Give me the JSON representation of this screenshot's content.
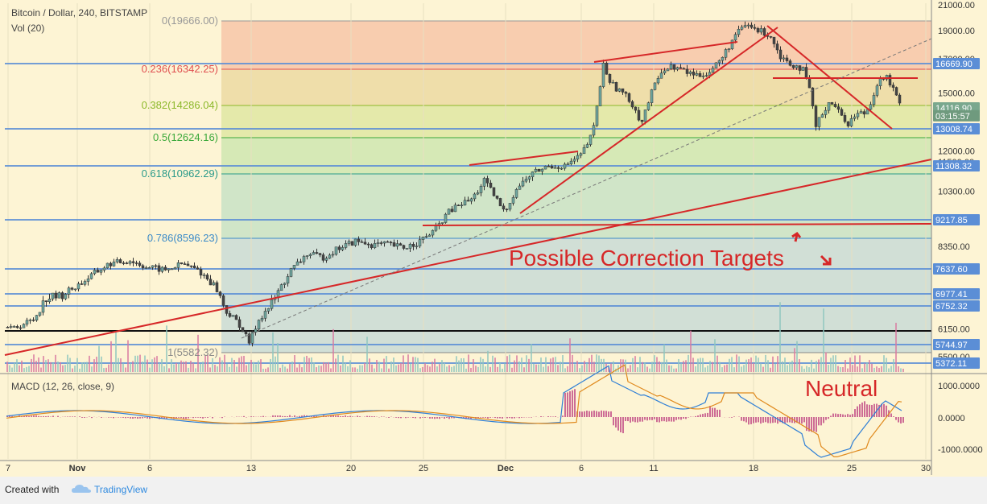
{
  "header": {
    "symbol": "Bitcoin / Dollar, 240, BITSTAMP",
    "volume": "Vol (20)",
    "macd": "MACD (12, 26, close, 9)"
  },
  "footer": {
    "created_with": "Created with",
    "brand": "TradingView"
  },
  "colors": {
    "background": "#fdf4d4",
    "up_candle": "#6fa8a0",
    "down_candle": "#444444",
    "red_line": "#d62728",
    "blue_line": "#5b8ed6",
    "price_badge": "#5b8ed6",
    "last_price_badge": "#7aa88e"
  },
  "chart_data": {
    "type": "candlestick",
    "ylim": [
      4800,
      21000
    ],
    "y_axis_labels": [
      "21000.00",
      "19000.00",
      "17000.00",
      "15000.00",
      "14000.00",
      "12000.00",
      "11500.00",
      "10300.00",
      "9217.85",
      "8350.00",
      "6150.00",
      "5500.00"
    ],
    "x_axis_labels": [
      "7",
      "Nov",
      "6",
      "13",
      "20",
      "25",
      "Dec",
      "6",
      "11",
      "18",
      "25",
      "30"
    ],
    "fib_levels": [
      {
        "ratio": "0",
        "price": 19666.0,
        "label": "0(19666.00)",
        "color": "#999999"
      },
      {
        "ratio": "0.236",
        "price": 16342.25,
        "label": "0.236(16342.25)",
        "color": "#e05050"
      },
      {
        "ratio": "0.382",
        "price": 14286.04,
        "label": "0.382(14286.04)",
        "color": "#8cb82a"
      },
      {
        "ratio": "0.5",
        "price": 12624.16,
        "label": "0.5(12624.16)",
        "color": "#3aa83a"
      },
      {
        "ratio": "0.618",
        "price": 10962.29,
        "label": "0.618(10962.29)",
        "color": "#2a9a8a"
      },
      {
        "ratio": "0.786",
        "price": 8596.23,
        "label": "0.786(8596.23)",
        "color": "#3a8ac8"
      },
      {
        "ratio": "1",
        "price": 5582.32,
        "label": "1(5582.32)",
        "color": "#888888"
      }
    ],
    "price_badges": [
      {
        "price": 16669.9,
        "label": "16669.90"
      },
      {
        "price": 14116.9,
        "label": "14116.90",
        "last": true
      },
      {
        "price": 13700,
        "label": "03:15:57",
        "timer": true
      },
      {
        "price": 13008.74,
        "label": "13008.74"
      },
      {
        "price": 11308.32,
        "label": "11308.32"
      },
      {
        "price": 9217.85,
        "label": "9217.85"
      },
      {
        "price": 7637.6,
        "label": "7637.60"
      },
      {
        "price": 6977.41,
        "label": "6977.41"
      },
      {
        "price": 6752.32,
        "label": "6752.32"
      },
      {
        "price": 5744.97,
        "label": "5744.97"
      },
      {
        "price": 5372.11,
        "label": "5372.11"
      }
    ],
    "horizontal_lines": [
      16669.9,
      13008.74,
      11308.32,
      9217.85,
      7637.6,
      6977.41,
      6752.32,
      5744.97,
      5372.11
    ],
    "support_level": 6050,
    "annotations": [
      {
        "text": "Possible Correction Targets",
        "color": "#d62728"
      },
      {
        "text": "Neutral",
        "color": "#d62728"
      }
    ],
    "macd_axis_labels": [
      "1000.0000",
      "0.0000",
      "-1000.0000"
    ],
    "close_path": [
      [
        0,
        6300
      ],
      [
        12,
        6150
      ],
      [
        24,
        6250
      ],
      [
        40,
        6400
      ],
      [
        55,
        6900
      ],
      [
        75,
        6950
      ],
      [
        95,
        7200
      ],
      [
        115,
        7500
      ],
      [
        135,
        7800
      ],
      [
        160,
        7900
      ],
      [
        180,
        7700
      ],
      [
        205,
        7600
      ],
      [
        225,
        7800
      ],
      [
        245,
        7600
      ],
      [
        265,
        7200
      ],
      [
        280,
        6600
      ],
      [
        295,
        6300
      ],
      [
        308,
        5800
      ],
      [
        320,
        6400
      ],
      [
        340,
        6900
      ],
      [
        360,
        7600
      ],
      [
        380,
        8100
      ],
      [
        400,
        8000
      ],
      [
        420,
        8300
      ],
      [
        440,
        8500
      ],
      [
        460,
        8400
      ],
      [
        480,
        8400
      ],
      [
        500,
        8300
      ],
      [
        520,
        8500
      ],
      [
        540,
        8900
      ],
      [
        555,
        9500
      ],
      [
        570,
        9800
      ],
      [
        585,
        10000
      ],
      [
        600,
        10700
      ],
      [
        615,
        10000
      ],
      [
        625,
        9500
      ],
      [
        640,
        10400
      ],
      [
        660,
        11000
      ],
      [
        680,
        11300
      ],
      [
        700,
        11300
      ],
      [
        720,
        11800
      ],
      [
        735,
        12800
      ],
      [
        748,
        16600
      ],
      [
        758,
        15500
      ],
      [
        772,
        15000
      ],
      [
        785,
        14300
      ],
      [
        795,
        13300
      ],
      [
        808,
        15000
      ],
      [
        820,
        16300
      ],
      [
        835,
        16500
      ],
      [
        850,
        16200
      ],
      [
        865,
        16000
      ],
      [
        880,
        16200
      ],
      [
        895,
        17000
      ],
      [
        910,
        18500
      ],
      [
        925,
        19400
      ],
      [
        940,
        19000
      ],
      [
        955,
        18700
      ],
      [
        968,
        17200
      ],
      [
        980,
        16700
      ],
      [
        995,
        16400
      ],
      [
        1005,
        15000
      ],
      [
        1012,
        13100
      ],
      [
        1022,
        14000
      ],
      [
        1030,
        14600
      ],
      [
        1042,
        13800
      ],
      [
        1052,
        13300
      ],
      [
        1062,
        13800
      ],
      [
        1075,
        13900
      ],
      [
        1088,
        15500
      ],
      [
        1098,
        16000
      ],
      [
        1108,
        15200
      ],
      [
        1118,
        14100
      ]
    ],
    "dates_pixel_note": "x positions are sampled along the time axis from 7 Nov to 30 Dec"
  }
}
